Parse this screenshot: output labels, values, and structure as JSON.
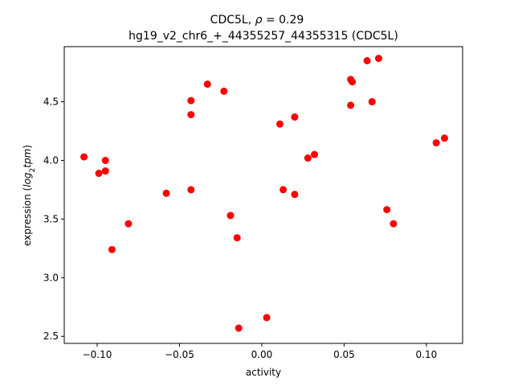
{
  "chart_data": {
    "type": "scatter",
    "title_line1_prefix": "CDC5L, ",
    "title_line1_rho": "ρ",
    "title_line1_suffix": " = 0.29",
    "title_line2": "hg19_v2_chr6_+_44355257_44355315 (CDC5L)",
    "xlabel": "activity",
    "ylabel_prefix": "expression (",
    "ylabel_log": "log",
    "ylabel_sub": "2",
    "ylabel_tpm": "tpm",
    "ylabel_suffix": ")",
    "xlim": [
      -0.12,
      0.122
    ],
    "ylim": [
      2.44,
      4.97
    ],
    "xticks": [
      -0.1,
      -0.05,
      0.0,
      0.05,
      0.1
    ],
    "xtick_labels": [
      "−0.10",
      "−0.05",
      "0.00",
      "0.05",
      "0.10"
    ],
    "yticks": [
      2.5,
      3.0,
      3.5,
      4.0,
      4.5
    ],
    "ytick_labels": [
      "2.5",
      "3.0",
      "3.5",
      "4.0",
      "4.5"
    ],
    "grid": false,
    "marker_color": "#ff0000",
    "points": [
      {
        "x": -0.108,
        "y": 4.03
      },
      {
        "x": -0.099,
        "y": 3.89
      },
      {
        "x": -0.095,
        "y": 4.0
      },
      {
        "x": -0.095,
        "y": 3.91
      },
      {
        "x": -0.091,
        "y": 3.24
      },
      {
        "x": -0.081,
        "y": 3.46
      },
      {
        "x": -0.058,
        "y": 3.72
      },
      {
        "x": -0.043,
        "y": 4.51
      },
      {
        "x": -0.043,
        "y": 4.39
      },
      {
        "x": -0.043,
        "y": 3.75
      },
      {
        "x": -0.033,
        "y": 4.65
      },
      {
        "x": -0.023,
        "y": 4.59
      },
      {
        "x": -0.019,
        "y": 3.53
      },
      {
        "x": -0.015,
        "y": 3.34
      },
      {
        "x": -0.014,
        "y": 2.57
      },
      {
        "x": 0.003,
        "y": 2.66
      },
      {
        "x": 0.011,
        "y": 4.31
      },
      {
        "x": 0.013,
        "y": 3.75
      },
      {
        "x": 0.02,
        "y": 4.37
      },
      {
        "x": 0.02,
        "y": 3.71
      },
      {
        "x": 0.028,
        "y": 4.02
      },
      {
        "x": 0.032,
        "y": 4.05
      },
      {
        "x": 0.054,
        "y": 4.69
      },
      {
        "x": 0.055,
        "y": 4.67
      },
      {
        "x": 0.054,
        "y": 4.47
      },
      {
        "x": 0.064,
        "y": 4.85
      },
      {
        "x": 0.067,
        "y": 4.5
      },
      {
        "x": 0.071,
        "y": 4.87
      },
      {
        "x": 0.076,
        "y": 3.58
      },
      {
        "x": 0.08,
        "y": 3.46
      },
      {
        "x": 0.106,
        "y": 4.15
      },
      {
        "x": 0.111,
        "y": 4.19
      }
    ]
  }
}
